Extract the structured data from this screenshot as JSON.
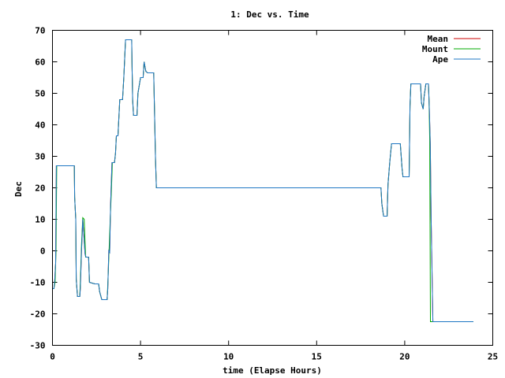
{
  "chart_data": {
    "type": "line",
    "title": "1: Dec vs. Time",
    "xlabel": "time (Elapse Hours)",
    "ylabel": "Dec",
    "xlim": [
      0,
      25
    ],
    "ylim": [
      -30,
      70
    ],
    "xticks": [
      0,
      5,
      10,
      15,
      20,
      25
    ],
    "yticks": [
      -30,
      -20,
      -10,
      0,
      10,
      20,
      30,
      40,
      50,
      60,
      70
    ],
    "grid": false,
    "legend_position": "top-right",
    "series": [
      {
        "name": "Mean",
        "color": "#cc0000",
        "points": [
          [
            0.0,
            -12
          ],
          [
            0.08,
            -12
          ],
          [
            0.12,
            -10
          ],
          [
            0.18,
            -4
          ],
          [
            0.22,
            27
          ],
          [
            0.5,
            27
          ],
          [
            1.2,
            27
          ],
          [
            1.24,
            27
          ],
          [
            1.26,
            17
          ],
          [
            1.32,
            10
          ],
          [
            1.35,
            -9
          ],
          [
            1.42,
            -14.5
          ],
          [
            1.55,
            -14.5
          ],
          [
            1.58,
            -12
          ],
          [
            1.65,
            0
          ],
          [
            1.72,
            10
          ],
          [
            1.78,
            5
          ],
          [
            1.85,
            -1
          ],
          [
            1.9,
            -2
          ],
          [
            2.05,
            -2
          ],
          [
            2.1,
            -10
          ],
          [
            2.4,
            -10.5
          ],
          [
            2.62,
            -10.5
          ],
          [
            2.68,
            -13
          ],
          [
            2.8,
            -15.5
          ],
          [
            3.1,
            -15.5
          ],
          [
            3.14,
            -12
          ],
          [
            3.2,
            0
          ],
          [
            3.25,
            -0.5
          ],
          [
            3.3,
            15
          ],
          [
            3.38,
            28
          ],
          [
            3.52,
            28
          ],
          [
            3.58,
            31
          ],
          [
            3.63,
            36.5
          ],
          [
            3.72,
            36.5
          ],
          [
            3.75,
            40
          ],
          [
            3.82,
            48
          ],
          [
            3.98,
            48
          ],
          [
            4.05,
            55
          ],
          [
            4.15,
            67
          ],
          [
            4.5,
            67
          ],
          [
            4.52,
            58
          ],
          [
            4.55,
            48
          ],
          [
            4.6,
            43
          ],
          [
            4.8,
            43
          ],
          [
            4.85,
            50
          ],
          [
            5.0,
            55
          ],
          [
            5.15,
            55
          ],
          [
            5.2,
            60
          ],
          [
            5.3,
            57
          ],
          [
            5.4,
            56.5
          ],
          [
            5.75,
            56.5
          ],
          [
            5.78,
            48
          ],
          [
            5.85,
            29
          ],
          [
            5.9,
            20
          ],
          [
            6.0,
            20
          ],
          [
            13.7,
            20
          ],
          [
            13.8,
            20
          ],
          [
            18.65,
            20
          ],
          [
            18.7,
            15
          ],
          [
            18.8,
            11
          ],
          [
            19.0,
            11
          ],
          [
            19.05,
            21
          ],
          [
            19.15,
            28
          ],
          [
            19.25,
            34
          ],
          [
            19.75,
            34
          ],
          [
            19.85,
            26
          ],
          [
            19.9,
            23.5
          ],
          [
            20.25,
            23.5
          ],
          [
            20.3,
            46
          ],
          [
            20.35,
            53
          ],
          [
            20.55,
            53
          ],
          [
            20.9,
            53
          ],
          [
            20.95,
            47
          ],
          [
            21.05,
            45
          ],
          [
            21.1,
            49
          ],
          [
            21.2,
            53
          ],
          [
            21.35,
            53
          ],
          [
            21.4,
            45
          ],
          [
            21.45,
            34
          ],
          [
            21.5,
            10
          ],
          [
            21.6,
            -22.5
          ],
          [
            23.9,
            -22.5
          ]
        ]
      },
      {
        "name": "Mount",
        "color": "#00aa00",
        "points": [
          [
            0.0,
            -12
          ],
          [
            0.08,
            -12
          ],
          [
            0.15,
            -10
          ],
          [
            0.2,
            0
          ],
          [
            0.24,
            27
          ],
          [
            0.5,
            27
          ],
          [
            1.2,
            27
          ],
          [
            1.24,
            27
          ],
          [
            1.26,
            17
          ],
          [
            1.32,
            10
          ],
          [
            1.35,
            -9
          ],
          [
            1.42,
            -14.5
          ],
          [
            1.55,
            -14.5
          ],
          [
            1.58,
            -10
          ],
          [
            1.65,
            2
          ],
          [
            1.72,
            10.5
          ],
          [
            1.8,
            10
          ],
          [
            1.88,
            -2
          ],
          [
            2.05,
            -2
          ],
          [
            2.1,
            -10
          ],
          [
            2.4,
            -10.5
          ],
          [
            2.62,
            -10.5
          ],
          [
            2.68,
            -13
          ],
          [
            2.8,
            -15.5
          ],
          [
            3.1,
            -15.5
          ],
          [
            3.12,
            -14
          ],
          [
            3.18,
            -5
          ],
          [
            3.28,
            10
          ],
          [
            3.35,
            20
          ],
          [
            3.4,
            28
          ],
          [
            3.52,
            28
          ],
          [
            3.58,
            31
          ],
          [
            3.63,
            36.5
          ],
          [
            3.72,
            36.5
          ],
          [
            3.75,
            40
          ],
          [
            3.82,
            48
          ],
          [
            3.98,
            48
          ],
          [
            4.05,
            55
          ],
          [
            4.15,
            67
          ],
          [
            4.5,
            67
          ],
          [
            4.52,
            58
          ],
          [
            4.55,
            48
          ],
          [
            4.6,
            43
          ],
          [
            4.8,
            43
          ],
          [
            4.85,
            50
          ],
          [
            5.0,
            55
          ],
          [
            5.15,
            55
          ],
          [
            5.2,
            60
          ],
          [
            5.3,
            57
          ],
          [
            5.4,
            56.5
          ],
          [
            5.75,
            56.5
          ],
          [
            5.78,
            48
          ],
          [
            5.85,
            29
          ],
          [
            5.9,
            20
          ],
          [
            6.0,
            20
          ],
          [
            18.65,
            20
          ],
          [
            18.7,
            15
          ],
          [
            18.8,
            11
          ],
          [
            19.0,
            11
          ],
          [
            19.05,
            21
          ],
          [
            19.15,
            28
          ],
          [
            19.25,
            34
          ],
          [
            19.75,
            34
          ],
          [
            19.85,
            26
          ],
          [
            19.9,
            23.5
          ],
          [
            20.25,
            23.5
          ],
          [
            20.3,
            46
          ],
          [
            20.35,
            53
          ],
          [
            20.9,
            53
          ],
          [
            20.95,
            47
          ],
          [
            21.05,
            45
          ],
          [
            21.1,
            49
          ],
          [
            21.2,
            53
          ],
          [
            21.35,
            53
          ],
          [
            21.38,
            48
          ],
          [
            21.42,
            35
          ],
          [
            21.46,
            -22.5
          ],
          [
            23.9,
            -22.5
          ]
        ]
      },
      {
        "name": "Ape",
        "color": "#1f77c4",
        "points": [
          [
            0.0,
            -12
          ],
          [
            0.08,
            -12
          ],
          [
            0.12,
            -10
          ],
          [
            0.18,
            -4
          ],
          [
            0.22,
            27
          ],
          [
            0.5,
            27
          ],
          [
            1.2,
            27
          ],
          [
            1.24,
            27
          ],
          [
            1.26,
            17
          ],
          [
            1.32,
            10
          ],
          [
            1.35,
            -9
          ],
          [
            1.42,
            -14.5
          ],
          [
            1.55,
            -14.5
          ],
          [
            1.58,
            -12
          ],
          [
            1.65,
            0
          ],
          [
            1.72,
            10
          ],
          [
            1.78,
            5
          ],
          [
            1.85,
            -1
          ],
          [
            1.9,
            -2
          ],
          [
            2.05,
            -2
          ],
          [
            2.1,
            -10
          ],
          [
            2.4,
            -10.5
          ],
          [
            2.62,
            -10.5
          ],
          [
            2.68,
            -13
          ],
          [
            2.8,
            -15.5
          ],
          [
            3.1,
            -15.5
          ],
          [
            3.14,
            -12
          ],
          [
            3.2,
            0
          ],
          [
            3.25,
            -0.5
          ],
          [
            3.3,
            15
          ],
          [
            3.38,
            28
          ],
          [
            3.52,
            28
          ],
          [
            3.58,
            31
          ],
          [
            3.63,
            36.5
          ],
          [
            3.72,
            36.5
          ],
          [
            3.75,
            40
          ],
          [
            3.82,
            48
          ],
          [
            3.98,
            48
          ],
          [
            4.05,
            55
          ],
          [
            4.15,
            67
          ],
          [
            4.5,
            67
          ],
          [
            4.52,
            58
          ],
          [
            4.55,
            48
          ],
          [
            4.6,
            43
          ],
          [
            4.8,
            43
          ],
          [
            4.85,
            50
          ],
          [
            5.0,
            55
          ],
          [
            5.15,
            55
          ],
          [
            5.2,
            60
          ],
          [
            5.3,
            57
          ],
          [
            5.4,
            56.5
          ],
          [
            5.75,
            56.5
          ],
          [
            5.78,
            48
          ],
          [
            5.85,
            29
          ],
          [
            5.9,
            20
          ],
          [
            6.0,
            20
          ],
          [
            18.65,
            20
          ],
          [
            18.7,
            15
          ],
          [
            18.8,
            11
          ],
          [
            19.0,
            11
          ],
          [
            19.05,
            21
          ],
          [
            19.15,
            28
          ],
          [
            19.25,
            34
          ],
          [
            19.75,
            34
          ],
          [
            19.85,
            26
          ],
          [
            19.9,
            23.5
          ],
          [
            20.25,
            23.5
          ],
          [
            20.3,
            46
          ],
          [
            20.35,
            53
          ],
          [
            20.9,
            53
          ],
          [
            20.95,
            47
          ],
          [
            21.05,
            45
          ],
          [
            21.1,
            49
          ],
          [
            21.2,
            53
          ],
          [
            21.35,
            53
          ],
          [
            21.4,
            45
          ],
          [
            21.45,
            34
          ],
          [
            21.5,
            10
          ],
          [
            21.6,
            -22.5
          ],
          [
            23.9,
            -22.5
          ]
        ]
      }
    ]
  }
}
